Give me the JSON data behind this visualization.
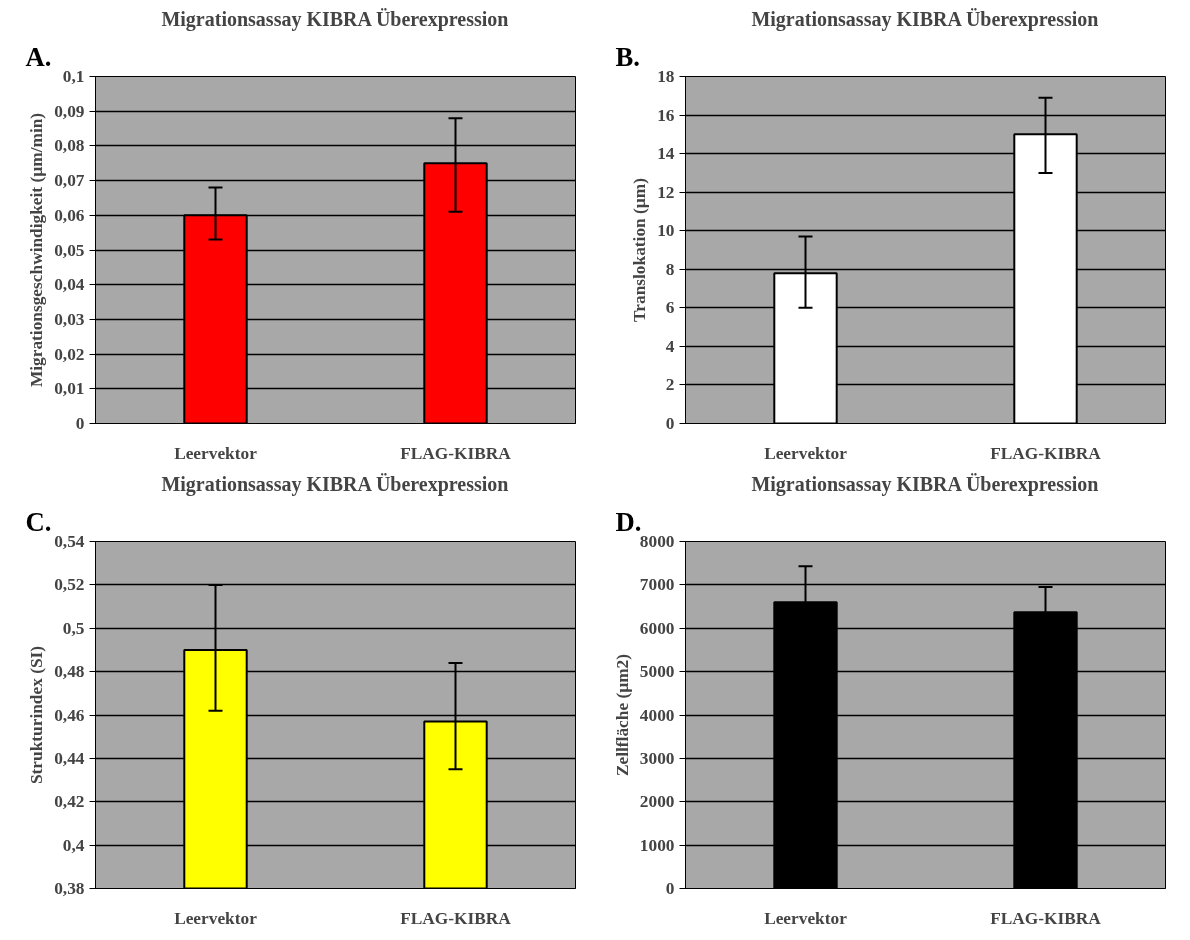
{
  "chart_data": [
    {
      "type": "bar",
      "title": "Migrationsassay KIBRA Überexpression",
      "annotations": [
        "A."
      ],
      "ylabel": "Migrationsgeschwindigkeit (µm/min)",
      "categories": [
        "Leervektor",
        "FLAG-KIBRA"
      ],
      "values": [
        0.06,
        0.075
      ],
      "color": "#ff0000",
      "errors": [
        [
          0.053,
          0.068
        ],
        [
          0.061,
          0.088
        ]
      ],
      "ylim": [
        0,
        0.1
      ],
      "yticks": [
        {
          "value": 0,
          "label": "0"
        },
        {
          "value": 0.01,
          "label": "0,01"
        },
        {
          "value": 0.02,
          "label": "0,02"
        },
        {
          "value": 0.03,
          "label": "0,03"
        },
        {
          "value": 0.04,
          "label": "0,04"
        },
        {
          "value": 0.05,
          "label": "0,05"
        },
        {
          "value": 0.06,
          "label": "0,06"
        },
        {
          "value": 0.07,
          "label": "0,07"
        },
        {
          "value": 0.08,
          "label": "0,08"
        },
        {
          "value": 0.09,
          "label": "0,09"
        },
        {
          "value": 0.1,
          "label": "0,1"
        }
      ],
      "grid": "y"
    },
    {
      "type": "bar",
      "title": "Migrationsassay KIBRA Überexpression",
      "annotations": [
        "B."
      ],
      "ylabel": "Translokation (µm)",
      "categories": [
        "Leervektor",
        "FLAG-KIBRA"
      ],
      "values": [
        7.8,
        15.0
      ],
      "color": "#ffffff",
      "errors": [
        [
          6.0,
          9.7
        ],
        [
          13.0,
          16.9
        ]
      ],
      "ylim": [
        0,
        18
      ],
      "yticks": [
        0,
        2,
        4,
        6,
        8,
        10,
        12,
        14,
        16,
        18
      ],
      "grid": "y"
    },
    {
      "type": "bar",
      "title": "Migrationsassay KIBRA Überexpression",
      "annotations": [
        "C."
      ],
      "ylabel": "Strukturindex (SI)",
      "categories": [
        "Leervektor",
        "FLAG-KIBRA"
      ],
      "values": [
        0.49,
        0.457
      ],
      "color": "#ffff00",
      "errors": [
        [
          0.462,
          0.52
        ],
        [
          0.435,
          0.484
        ]
      ],
      "ylim": [
        0.38,
        0.54
      ],
      "yticks": [
        {
          "value": 0.38,
          "label": "0,38"
        },
        {
          "value": 0.4,
          "label": "0,4"
        },
        {
          "value": 0.42,
          "label": "0,42"
        },
        {
          "value": 0.44,
          "label": "0,44"
        },
        {
          "value": 0.46,
          "label": "0,46"
        },
        {
          "value": 0.48,
          "label": "0,48"
        },
        {
          "value": 0.5,
          "label": "0,5"
        },
        {
          "value": 0.52,
          "label": "0,52"
        },
        {
          "value": 0.54,
          "label": "0,54"
        }
      ],
      "grid": "y"
    },
    {
      "type": "bar",
      "title": "Migrationsassay KIBRA Überexpression",
      "annotations": [
        "D."
      ],
      "ylabel": "Zellfläche (µm2)",
      "categories": [
        "Leervektor",
        "FLAG-KIBRA"
      ],
      "values": [
        6600,
        6370
      ],
      "color": "#000000",
      "errors": [
        830,
        580
      ],
      "ylim": [
        0,
        8000
      ],
      "yticks": [
        0,
        1000,
        2000,
        3000,
        4000,
        5000,
        6000,
        7000,
        8000
      ],
      "grid": "y"
    }
  ]
}
